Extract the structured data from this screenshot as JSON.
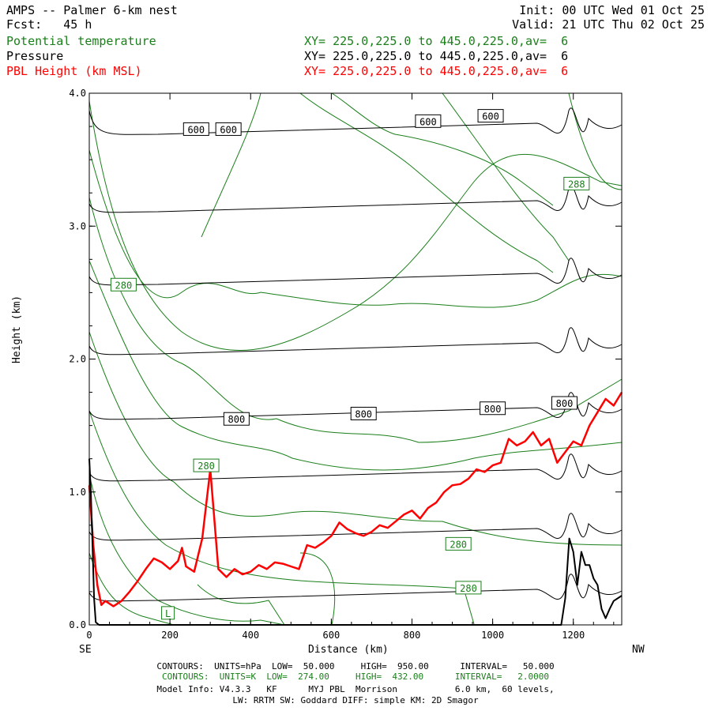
{
  "header": {
    "title": "AMPS -- Palmer 6-km nest",
    "fcst": "Fcst:   45 h",
    "init": "Init: 00 UTC Wed 01 Oct 25",
    "valid": "Valid: 21 UTC Thu 02 Oct 25",
    "field1": "Potential temperature",
    "field2": "Pressure",
    "field3": "PBL Height (km MSL)",
    "xy1": "XY= 225.0,225.0 to 445.0,225.0,av=  6",
    "xy2": "XY= 225.0,225.0 to 445.0,225.0,av=  6",
    "xy3": "XY= 225.0,225.0 to 445.0,225.0,av=  6"
  },
  "footer": {
    "line1": "CONTOURS:  UNITS=hPa  LOW=  50.000     HIGH=  950.00      INTERVAL=   50.000",
    "line2": "CONTOURS:  UNITS=K  LOW=  274.00     HIGH=  432.00      INTERVAL=   2.0000",
    "line3": "Model Info: V4.3.3   KF      MYJ PBL  Morrison           6.0 km,  60 levels,",
    "line4": "LW: RRTM SW: Goddard DIFF: simple KM: 2D Smagor"
  },
  "colors": {
    "theta": "#1a7f1a",
    "pressure": "#000000",
    "pbl": "#ff0000"
  },
  "chart_data": {
    "type": "line",
    "title": "PBL Height (km MSL)",
    "xlabel": "Distance (km)",
    "ylabel": "Height (km)",
    "xlim": [
      0,
      1320
    ],
    "ylim": [
      0,
      4.0
    ],
    "xticks": [
      0,
      200,
      400,
      600,
      800,
      1000,
      1200
    ],
    "yticks": [
      0.0,
      1.0,
      2.0,
      3.0,
      4.0
    ],
    "xtick_labels": [
      "0",
      "200",
      "400",
      "600",
      "800",
      "1000",
      "1200"
    ],
    "ytick_labels": [
      "0.0",
      "1.0",
      "2.0",
      "3.0",
      "4.0"
    ],
    "left_end_label": "SE",
    "right_end_label": "NW",
    "series": [
      {
        "name": "PBL Height (km MSL)",
        "color": "#ff0000",
        "x": [
          0,
          10,
          20,
          30,
          40,
          60,
          80,
          100,
          120,
          140,
          160,
          180,
          200,
          220,
          230,
          240,
          260,
          280,
          300,
          320,
          340,
          360,
          380,
          400,
          420,
          440,
          460,
          480,
          500,
          520,
          540,
          560,
          580,
          600,
          620,
          640,
          660,
          680,
          700,
          720,
          740,
          760,
          780,
          800,
          820,
          840,
          860,
          880,
          900,
          920,
          940,
          960,
          980,
          1000,
          1020,
          1040,
          1060,
          1080,
          1100,
          1120,
          1140,
          1160,
          1180,
          1200,
          1220,
          1240,
          1260,
          1280,
          1300,
          1320
        ],
        "y": [
          1.05,
          0.6,
          0.3,
          0.15,
          0.18,
          0.14,
          0.18,
          0.25,
          0.33,
          0.42,
          0.5,
          0.47,
          0.42,
          0.48,
          0.58,
          0.44,
          0.4,
          0.65,
          1.17,
          0.42,
          0.36,
          0.42,
          0.38,
          0.4,
          0.45,
          0.42,
          0.47,
          0.46,
          0.44,
          0.42,
          0.6,
          0.58,
          0.62,
          0.67,
          0.77,
          0.72,
          0.69,
          0.67,
          0.7,
          0.75,
          0.73,
          0.78,
          0.83,
          0.86,
          0.8,
          0.88,
          0.92,
          1.0,
          1.05,
          1.06,
          1.1,
          1.17,
          1.15,
          1.2,
          1.22,
          1.4,
          1.35,
          1.38,
          1.45,
          1.35,
          1.4,
          1.22,
          1.3,
          1.38,
          1.35,
          1.5,
          1.6,
          1.7,
          1.65,
          1.75
        ]
      },
      {
        "name": "Terrain",
        "color": "#000000",
        "x": [
          0,
          4,
          8,
          12,
          16,
          24,
          40,
          1100,
          1170,
          1180,
          1190,
          1200,
          1210,
          1220,
          1230,
          1240,
          1250,
          1260,
          1270,
          1280,
          1290,
          1300,
          1310,
          1320
        ],
        "y": [
          1.25,
          1.0,
          0.6,
          0.2,
          0.02,
          0.0,
          0.0,
          0.0,
          0.0,
          0.2,
          0.65,
          0.55,
          0.3,
          0.55,
          0.45,
          0.45,
          0.35,
          0.3,
          0.12,
          0.05,
          0.12,
          0.18,
          0.2,
          0.22
        ]
      }
    ],
    "contour_labels": {
      "pressure": [
        {
          "text": "600",
          "x": 265,
          "y": 3.73
        },
        {
          "text": "600",
          "x": 345,
          "y": 3.73
        },
        {
          "text": "600",
          "x": 840,
          "y": 3.79
        },
        {
          "text": "600",
          "x": 995,
          "y": 3.83
        },
        {
          "text": "800",
          "x": 365,
          "y": 1.55
        },
        {
          "text": "800",
          "x": 680,
          "y": 1.59
        },
        {
          "text": "800",
          "x": 1000,
          "y": 1.63
        },
        {
          "text": "800",
          "x": 1178,
          "y": 1.67
        }
      ],
      "theta": [
        {
          "text": "280",
          "x": 85,
          "y": 2.56
        },
        {
          "text": "280",
          "x": 290,
          "y": 1.2
        },
        {
          "text": "280",
          "x": 915,
          "y": 0.61
        },
        {
          "text": "280",
          "x": 940,
          "y": 0.28
        },
        {
          "text": "288",
          "x": 1208,
          "y": 3.32
        },
        {
          "text": "L",
          "x": 195,
          "y": 0.09
        }
      ]
    }
  }
}
